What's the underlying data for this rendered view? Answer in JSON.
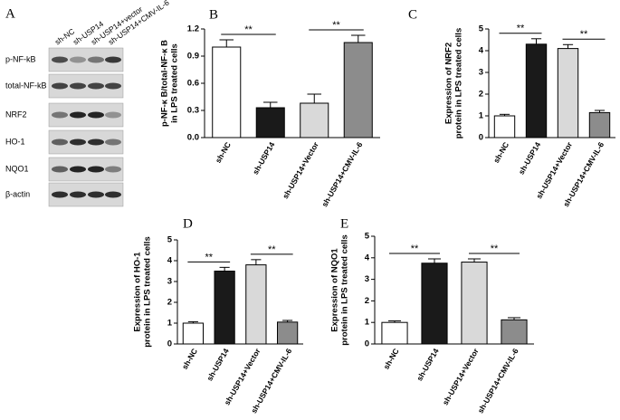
{
  "blot": {
    "panel": "A",
    "lanes": [
      "sh-NC",
      "sh-USP14",
      "sh-USP14+vector",
      "sh-USP14+CMV-IL-6"
    ],
    "proteins": [
      "p-NF-kB",
      "total-NF-kB",
      "NRF2",
      "HO-1",
      "NQO1",
      "β-actin"
    ]
  },
  "chart_data": [
    {
      "type": "bar",
      "panel": "B",
      "ylabel": [
        "p-NF-κ B/total-NF-κ B",
        "in LPS treated cells"
      ],
      "categories": [
        "sh-NC",
        "sh-USP14",
        "sh-USP14+Vector",
        "sh-USP14+CMV-IL-6"
      ],
      "values": [
        1.0,
        0.33,
        0.38,
        1.05
      ],
      "errors": [
        0.08,
        0.06,
        0.1,
        0.08
      ],
      "colors": [
        "#ffffff",
        "#1a1a1a",
        "#d9d9d9",
        "#8c8c8c"
      ],
      "annotations": [
        "**",
        "**"
      ],
      "ylim": [
        0,
        1.2
      ],
      "yticks": [
        {
          "value": 0,
          "label": "0.0"
        },
        0.3,
        0.6,
        0.9,
        1.2
      ]
    },
    {
      "type": "bar",
      "panel": "C",
      "ylabel": [
        "Expression of NRF2",
        "protein in LPS treated cells"
      ],
      "categories": [
        "sh-NC",
        "sh-USP14",
        "sh-USP14+Vector",
        "sh-USP14+CMV-IL-6"
      ],
      "values": [
        1.0,
        4.3,
        4.1,
        1.15
      ],
      "errors": [
        0.07,
        0.25,
        0.18,
        0.1
      ],
      "colors": [
        "#ffffff",
        "#1a1a1a",
        "#d9d9d9",
        "#8c8c8c"
      ],
      "annotations": [
        "**",
        "**"
      ],
      "ylim": [
        0,
        5
      ],
      "yticks": [
        0,
        1,
        2,
        3,
        4,
        5
      ]
    },
    {
      "type": "bar",
      "panel": "D",
      "ylabel": [
        "Expression of HO-1",
        "protein in LPS treated cells"
      ],
      "categories": [
        "sh-NC",
        "sh-USP14",
        "sh-USP14+Vector",
        "sh-USP14+CMV-IL-6"
      ],
      "values": [
        1.0,
        3.5,
        3.8,
        1.05
      ],
      "errors": [
        0.07,
        0.18,
        0.25,
        0.08
      ],
      "colors": [
        "#ffffff",
        "#1a1a1a",
        "#d9d9d9",
        "#8c8c8c"
      ],
      "annotations": [
        "**",
        "**"
      ],
      "ylim": [
        0,
        5
      ],
      "yticks": [
        0,
        1,
        2,
        3,
        4,
        5
      ]
    },
    {
      "type": "bar",
      "panel": "E",
      "ylabel": [
        "Expression of NQO1",
        "protein in LPS treated cells"
      ],
      "categories": [
        "sh-NC",
        "sh-USP14",
        "sh-USP14+Vector",
        "sh-USP14+CMV-IL-6"
      ],
      "values": [
        1.0,
        3.75,
        3.8,
        1.12
      ],
      "errors": [
        0.07,
        0.2,
        0.15,
        0.1
      ],
      "colors": [
        "#ffffff",
        "#1a1a1a",
        "#d9d9d9",
        "#8c8c8c"
      ],
      "annotations": [
        "**",
        "**"
      ],
      "ylim": [
        0,
        5
      ],
      "yticks": [
        0,
        1,
        2,
        3,
        4,
        5
      ]
    }
  ]
}
